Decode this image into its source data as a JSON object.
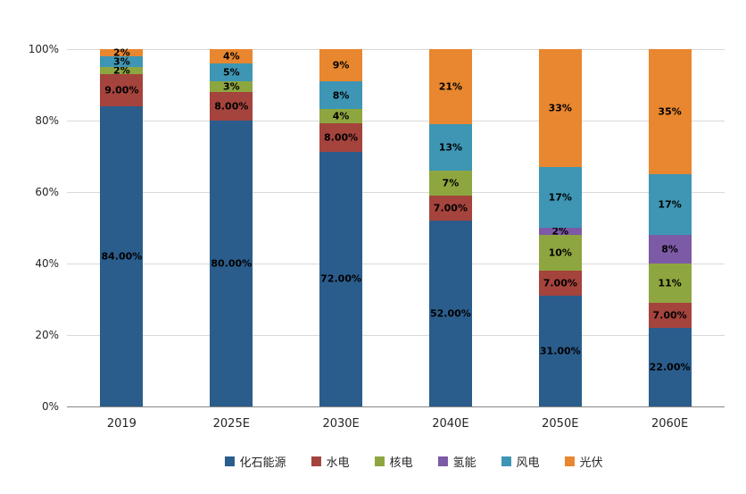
{
  "chart_data": {
    "type": "bar",
    "variant": "stacked-100-percent",
    "title": "",
    "xlabel": "",
    "ylabel": "",
    "ylim": [
      0,
      100
    ],
    "grid": true,
    "legend_position": "bottom",
    "y_ticks": [
      0,
      20,
      40,
      60,
      80,
      100
    ],
    "y_tick_labels": [
      "0%",
      "20%",
      "40%",
      "60%",
      "80%",
      "100%"
    ],
    "categories": [
      "2019",
      "2025E",
      "2030E",
      "2040E",
      "2050E",
      "2060E"
    ],
    "series": [
      {
        "name": "化石能源",
        "color": "#2A5D8C",
        "values": [
          84,
          80,
          72,
          52,
          31,
          22
        ],
        "labels": [
          "84.00%",
          "80.00%",
          "72.00%",
          "52.00%",
          "31.00%",
          "22.00%"
        ]
      },
      {
        "name": "水电",
        "color": "#A5433D",
        "values": [
          9,
          8,
          8,
          7,
          7,
          7
        ],
        "labels": [
          "9.00%",
          "8.00%",
          "8.00%",
          "7.00%",
          "7.00%",
          "7.00%"
        ]
      },
      {
        "name": "核电",
        "color": "#8EA63F",
        "values": [
          2,
          3,
          4,
          7,
          10,
          11
        ],
        "labels": [
          "2%",
          "3%",
          "4%",
          "7%",
          "10%",
          "11%"
        ]
      },
      {
        "name": "氢能",
        "color": "#7C5AA5",
        "values": [
          0,
          0,
          0,
          0,
          2,
          8
        ],
        "labels": [
          "",
          "",
          "",
          "",
          "2%",
          "8%"
        ]
      },
      {
        "name": "风电",
        "color": "#3E96B4",
        "values": [
          3,
          5,
          8,
          13,
          17,
          17
        ],
        "labels": [
          "3%",
          "5%",
          "8%",
          "13%",
          "17%",
          "17%"
        ]
      },
      {
        "name": "光伏",
        "color": "#E8872F",
        "values": [
          2,
          4,
          9,
          21,
          33,
          35
        ],
        "labels": [
          "2%",
          "4%",
          "9%",
          "21%",
          "33%",
          "35%"
        ]
      }
    ]
  }
}
